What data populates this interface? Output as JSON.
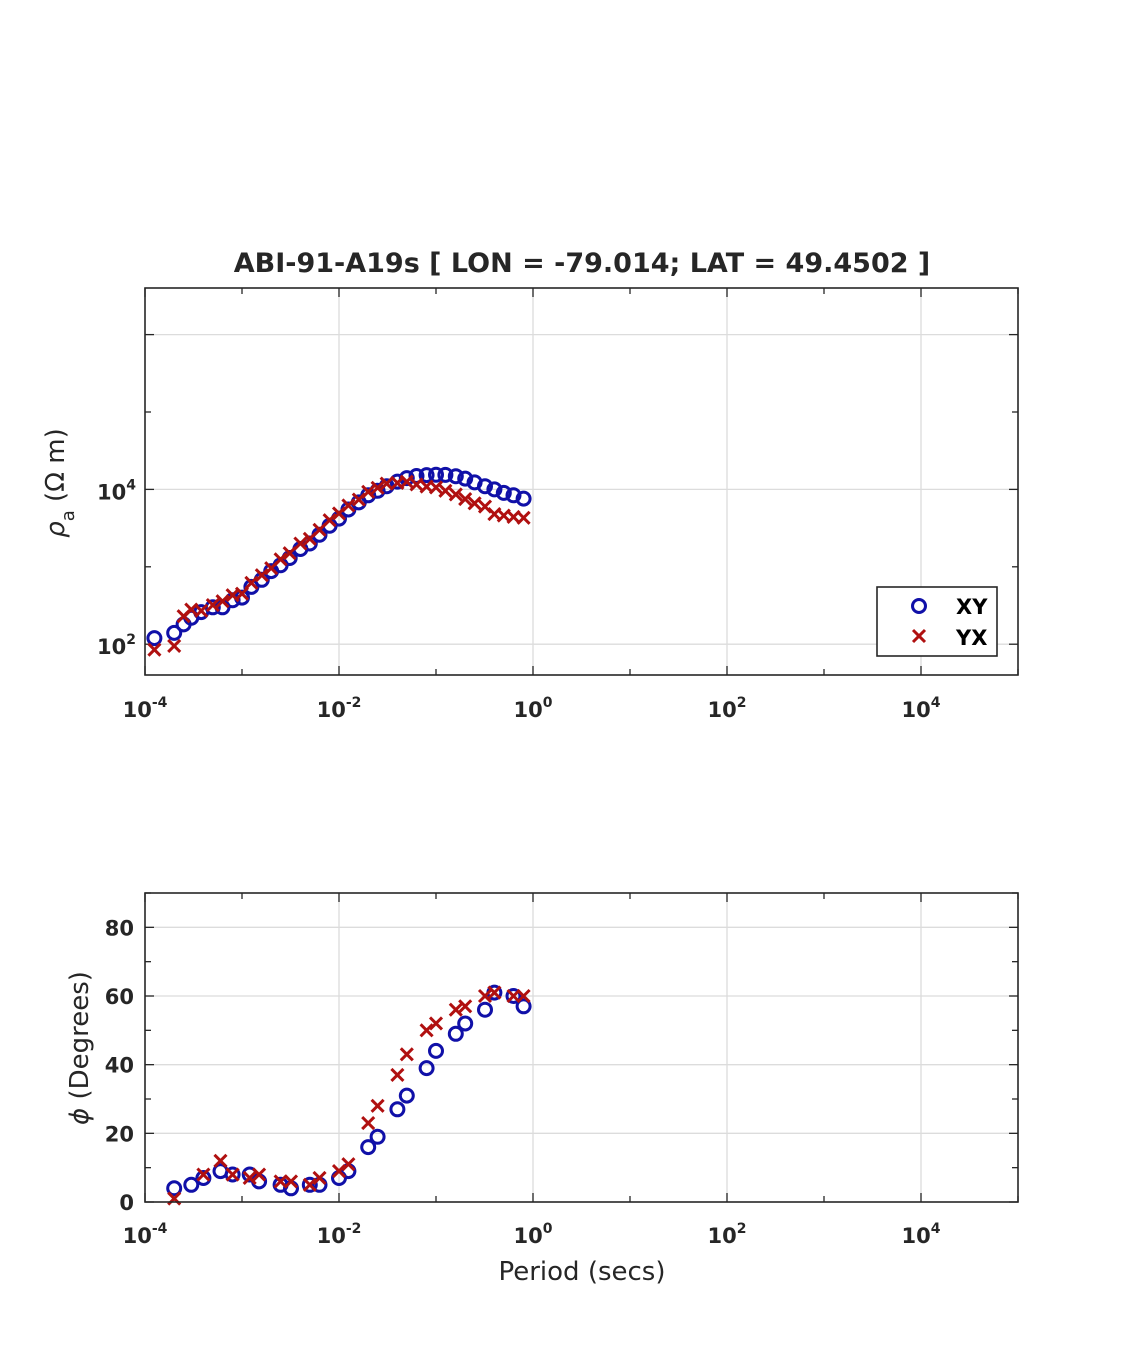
{
  "chart_data": [
    {
      "type": "scatter",
      "title": "ABI-91-A19s [ LON = -79.014; LAT = 49.4502 ]",
      "xlabel": "",
      "ylabel": "ρa (Ω m)",
      "xscale": "log",
      "yscale": "log",
      "xlim": [
        0.0001,
        100000
      ],
      "ylim": [
        40,
        4000000
      ],
      "xticks": [
        {
          "base": "10",
          "exp": "-4"
        },
        {
          "base": "10",
          "exp": "-2"
        },
        {
          "base": "10",
          "exp": "0"
        },
        {
          "base": "10",
          "exp": "2"
        },
        {
          "base": "10",
          "exp": "4"
        }
      ],
      "yticks": [
        {
          "base": "10",
          "exp": "2"
        },
        {
          "base": "10",
          "exp": "4"
        }
      ],
      "grid": true,
      "legend": {
        "position": "bottom-right",
        "entries": [
          "XY",
          "YX"
        ]
      },
      "series": [
        {
          "name": "XY",
          "marker": "circle",
          "color": "#1010a8",
          "x": [
            0.000125,
            0.0002,
            0.00025,
            0.0003,
            0.00038,
            0.0005,
            0.00063,
            0.0008,
            0.001,
            0.00125,
            0.0016,
            0.002,
            0.0025,
            0.0031,
            0.004,
            0.005,
            0.0063,
            0.008,
            0.01,
            0.0125,
            0.016,
            0.02,
            0.025,
            0.031,
            0.04,
            0.05,
            0.063,
            0.08,
            0.1,
            0.125,
            0.16,
            0.2,
            0.25,
            0.32,
            0.4,
            0.5,
            0.63,
            0.8
          ],
          "y": [
            120,
            140,
            180,
            220,
            260,
            300,
            300,
            370,
            400,
            550,
            680,
            880,
            1050,
            1300,
            1700,
            2000,
            2600,
            3400,
            4200,
            5500,
            6800,
            8400,
            9600,
            11000,
            12600,
            14000,
            14900,
            15300,
            15500,
            15400,
            14800,
            13800,
            12300,
            11000,
            10000,
            9000,
            8400,
            7600
          ]
        },
        {
          "name": "YX",
          "marker": "x",
          "color": "#b01010",
          "x": [
            0.000125,
            0.0002,
            0.00025,
            0.0003,
            0.00038,
            0.0005,
            0.00063,
            0.0008,
            0.001,
            0.00125,
            0.0016,
            0.002,
            0.0025,
            0.0031,
            0.004,
            0.005,
            0.0063,
            0.008,
            0.01,
            0.0125,
            0.016,
            0.02,
            0.025,
            0.031,
            0.04,
            0.05,
            0.063,
            0.08,
            0.1,
            0.125,
            0.16,
            0.2,
            0.25,
            0.32,
            0.4,
            0.5,
            0.63,
            0.8
          ],
          "y": [
            85,
            95,
            230,
            280,
            270,
            320,
            360,
            430,
            450,
            620,
            780,
            960,
            1250,
            1500,
            2000,
            2300,
            3000,
            4000,
            4900,
            6200,
            7400,
            9300,
            10500,
            11900,
            12100,
            12600,
            11600,
            10900,
            10600,
            9600,
            8600,
            7500,
            6600,
            6000,
            4800,
            4600,
            4400,
            4300
          ]
        }
      ]
    },
    {
      "type": "scatter",
      "title": "",
      "xlabel": "Period (secs)",
      "ylabel": "ϕ (Degrees)",
      "xscale": "log",
      "yscale": "linear",
      "xlim": [
        0.0001,
        100000
      ],
      "ylim": [
        0,
        90
      ],
      "xticks": [
        {
          "base": "10",
          "exp": "-4"
        },
        {
          "base": "10",
          "exp": "-2"
        },
        {
          "base": "10",
          "exp": "0"
        },
        {
          "base": "10",
          "exp": "2"
        },
        {
          "base": "10",
          "exp": "4"
        }
      ],
      "yticks": [
        "0",
        "20",
        "40",
        "60",
        "80"
      ],
      "grid": true,
      "series": [
        {
          "name": "XY",
          "marker": "circle",
          "color": "#1010a8",
          "x": [
            0.0002,
            0.0003,
            0.0004,
            0.0006,
            0.0008,
            0.0012,
            0.0015,
            0.0025,
            0.0032,
            0.005,
            0.0063,
            0.01,
            0.0125,
            0.02,
            0.025,
            0.04,
            0.05,
            0.08,
            0.1,
            0.16,
            0.2,
            0.32,
            0.4,
            0.63,
            0.8
          ],
          "y": [
            4,
            5,
            7,
            9,
            8,
            8,
            6,
            5,
            4,
            5,
            5,
            7,
            9,
            16,
            19,
            27,
            31,
            39,
            44,
            49,
            52,
            56,
            61,
            60,
            57
          ]
        },
        {
          "name": "YX",
          "marker": "x",
          "color": "#b01010",
          "x": [
            0.0002,
            0.0004,
            0.0006,
            0.0008,
            0.0012,
            0.0015,
            0.0025,
            0.0032,
            0.005,
            0.0063,
            0.01,
            0.0125,
            0.02,
            0.025,
            0.04,
            0.05,
            0.08,
            0.1,
            0.16,
            0.2,
            0.32,
            0.4,
            0.63,
            0.8
          ],
          "y": [
            1,
            8,
            12,
            8,
            7,
            8,
            6,
            6,
            5,
            7,
            9,
            11,
            23,
            28,
            37,
            43,
            50,
            52,
            56,
            57,
            60,
            61,
            60,
            60
          ]
        }
      ]
    }
  ]
}
